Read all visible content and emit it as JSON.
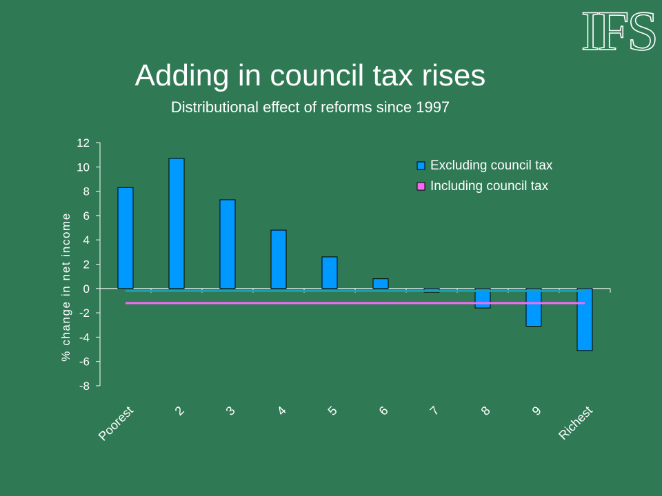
{
  "logo": {
    "text": "IFS"
  },
  "chart_data": {
    "type": "bar",
    "title": "Adding in council tax rises",
    "subtitle": "Distributional effect of reforms since 1997",
    "ylabel": "% change in net income",
    "xlabel": "",
    "categories": [
      "Poorest",
      "2",
      "3",
      "4",
      "5",
      "6",
      "7",
      "8",
      "9",
      "Richest"
    ],
    "ylim": [
      -8,
      12
    ],
    "yticks": [
      12,
      10,
      8,
      6,
      4,
      2,
      0,
      -2,
      -4,
      -6,
      -8
    ],
    "series": [
      {
        "name": "Excluding council tax",
        "kind": "bar",
        "color": "#0099ff",
        "values": [
          8.3,
          10.7,
          7.3,
          4.8,
          2.6,
          0.8,
          -0.3,
          -1.6,
          -3.1,
          -5.1
        ]
      },
      {
        "name": "Including council tax",
        "kind": "line",
        "color": "#ff66ff",
        "values": [
          -1.2,
          -1.2,
          -1.2,
          -1.2,
          -1.2,
          -1.2,
          -1.2,
          -1.2,
          -1.2,
          -1.2
        ]
      },
      {
        "name": "",
        "kind": "line",
        "color": "#1aa0b0",
        "values": [
          -0.2,
          -0.2,
          -0.2,
          -0.2,
          -0.2,
          -0.2,
          -0.2,
          -0.2,
          -0.2,
          -0.2
        ]
      }
    ],
    "grid": false,
    "legend": {
      "position": "top-right"
    }
  }
}
